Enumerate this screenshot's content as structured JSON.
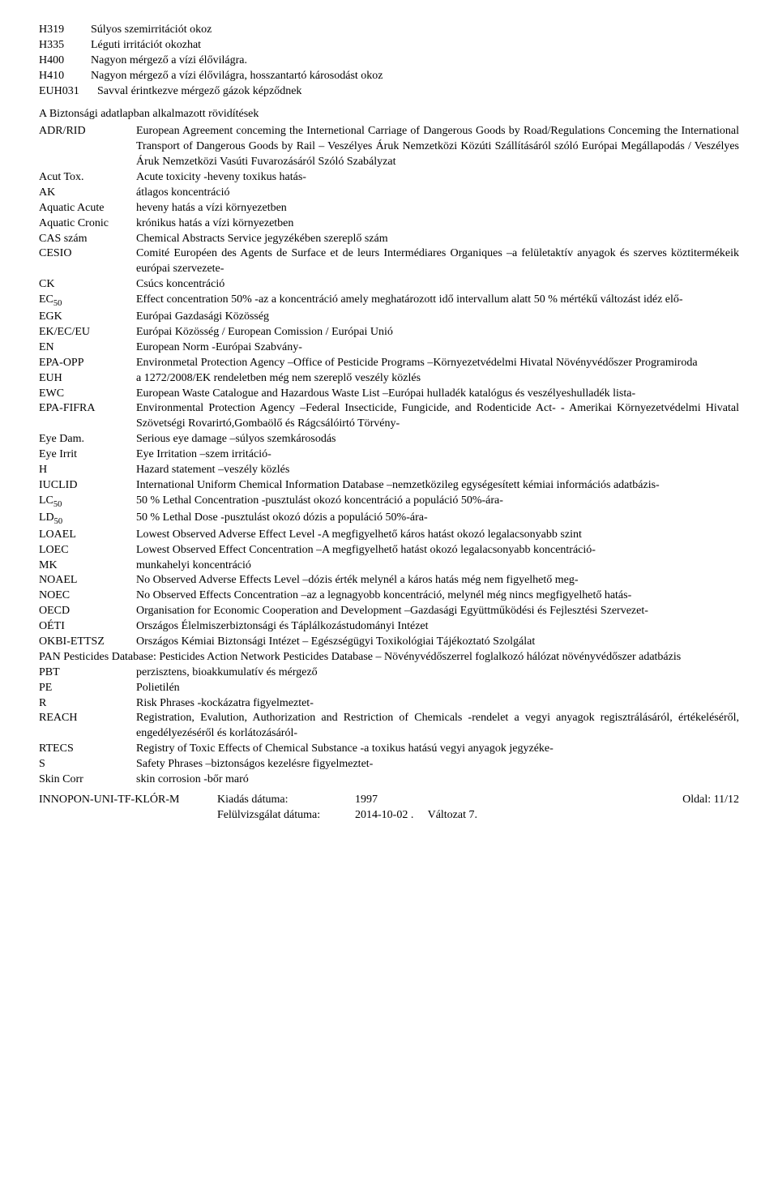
{
  "hazards": [
    {
      "code": "H319",
      "text": "Súlyos szemirritációt okoz"
    },
    {
      "code": "H335",
      "text": "Léguti irritációt okozhat"
    },
    {
      "code": "H400",
      "text": "Nagyon mérgező a vízi élővilágra."
    },
    {
      "code": "H410",
      "text": "Nagyon mérgező a vízi élővilágra, hosszantartó károsodást okoz"
    },
    {
      "code": "EUH031",
      "text": "Savval érintkezve mérgező gázok képződnek"
    }
  ],
  "section_title": "A Biztonsági adatlapban alkalmazott rövidítések",
  "abbr": [
    {
      "term": "ADR/RID",
      "def": "European Agreement conceming the Internetional Carriage of Dangerous Goods by Road/Regulations Conceming the International Transport of Dangerous Goods by Rail – Veszélyes Áruk Nemzetközi Közúti Szállításáról szóló Európai Megállapodás / Veszélyes Áruk Nemzetközi Vasúti Fuvarozásáról Szóló Szabályzat"
    },
    {
      "term": "Acut Tox.",
      "def": "Acute toxicity -heveny toxikus hatás-"
    },
    {
      "term": "AK",
      "def": "átlagos koncentráció"
    },
    {
      "term": "Aquatic Acute",
      "def": "heveny hatás a vízi környezetben"
    },
    {
      "term": "Aquatic Cronic",
      "def": "krónikus hatás a vízi környezetben"
    },
    {
      "term": "CAS szám",
      "def": "Chemical Abstracts Service jegyzékében szereplő szám"
    },
    {
      "term": "CESIO",
      "def": "Comité Européen des Agents de Surface et de leurs Intermédiares Organiques –a felületaktív anyagok és szerves köztitermékeik európai szervezete-"
    },
    {
      "term": "CK",
      "def": "Csúcs koncentráció"
    },
    {
      "term": "EC50",
      "sub": "50",
      "termBase": "EC",
      "def": "Effect concentration 50% -az a koncentráció amely meghatározott idő intervallum alatt 50 % mértékű változást idéz elő-"
    },
    {
      "term": "EGK",
      "def": "Európai Gazdasági Közösség"
    },
    {
      "term": "EK/EC/EU",
      "def": "Európai Közösség / European Comission / Európai Unió"
    },
    {
      "term": "EN",
      "def": "European Norm -Európai Szabvány-"
    },
    {
      "term": "EPA-OPP",
      "def": "Environmetal Protection Agency –Office of Pesticide Programs –Környezetvédelmi Hivatal Növényvédőszer Programiroda"
    },
    {
      "term": "EUH",
      "def": "a 1272/2008/EK rendeletben még nem szereplő veszély közlés"
    },
    {
      "term": "EWC",
      "def": "European Waste Catalogue and Hazardous Waste List –Európai hulladék katalógus és veszélyeshulladék lista-"
    },
    {
      "term": "EPA-FIFRA",
      "def": "Environmental Protection Agency –Federal Insecticide, Fungicide, and Rodenticide Act- - Amerikai Környezetvédelmi Hivatal Szövetségi Rovarirtó,Gombaölő és Rágcsálóirtó Törvény-"
    },
    {
      "term": "Eye Dam.",
      "def": "Serious eye damage –súlyos szemkárosodás"
    },
    {
      "term": "Eye Irrit",
      "def": "Eye Irritation –szem irritáció-"
    },
    {
      "term": "H",
      "def": "Hazard statement –veszély közlés"
    },
    {
      "term": "IUCLID",
      "def": "International Uniform Chemical Information Database –nemzetközileg egységesített kémiai információs adatbázis-"
    },
    {
      "term": "LC50",
      "sub": "50",
      "termBase": "LC",
      "def": "50 % Lethal Concentration -pusztulást okozó koncentráció a populáció 50%-ára-"
    },
    {
      "term": "LD50",
      "sub": "50",
      "termBase": "LD",
      "def": "50 % Lethal Dose -pusztulást okozó dózis a populáció 50%-ára-"
    },
    {
      "term": "LOAEL",
      "def": "Lowest Observed Adverse Effect Level -A megfigyelhető káros hatást okozó legalacsonyabb szint"
    },
    {
      "term": "LOEC",
      "def": "Lowest Observed Effect Concentration –A megfigyelhető hatást okozó legalacsonyabb koncentráció-"
    },
    {
      "term": "MK",
      "def": "munkahelyi koncentráció"
    },
    {
      "term": "NOAEL",
      "def": "No Observed Adverse Effects Level –dózis érték melynél a káros hatás még nem figyelhető meg-"
    },
    {
      "term": "NOEC",
      "def": "No Observed Effects Concentration –az a legnagyobb koncentráció, melynél még nincs megfigyelhető hatás-"
    },
    {
      "term": "OECD",
      "def": "Organisation for Economic Cooperation and Development –Gazdasági Együttműködési és Fejlesztési Szervezet-"
    },
    {
      "term": "OÉTI",
      "def": "Országos Élelmiszerbiztonsági és Táplálkozástudományi Intézet"
    },
    {
      "term": "OKBI-ETTSZ",
      "def": "Országos Kémiai Biztonsági Intézet – Egészségügyi Toxikológiai Tájékoztató Szolgálat"
    },
    {
      "term": "PAN Pesticides",
      "def": "Database: Pesticides Action Network Pesticides Database – Növényvédőszerrel foglalkozó hálózat növényvédőszer adatbázis",
      "inline": true
    },
    {
      "term": "PBT",
      "def": "perzisztens, bioakkumulatív és mérgező"
    },
    {
      "term": "PE",
      "def": "Polietilén"
    },
    {
      "term": "R",
      "def": "Risk Phrases -kockázatra figyelmeztet-"
    },
    {
      "term": "REACH",
      "def": "Registration, Evalution, Authorization and Restriction of Chemicals -rendelet a vegyi anyagok regisztrálásáról, értékeléséről, engedélyezéséről és korlátozásáról-"
    },
    {
      "term": "RTECS",
      "def": "Registry of Toxic Effects of Chemical Substance -a toxikus hatású vegyi anyagok jegyzéke-"
    },
    {
      "term": "S",
      "def": "Safety Phrases –biztonságos kezelésre figyelmeztet-"
    },
    {
      "term": "Skin Corr",
      "def": "skin corrosion -bőr maró"
    }
  ],
  "footer": {
    "product": "INNOPON-UNI-TF-KLÓR-M",
    "issue_label": "Kiadás dátuma:",
    "issue_value": "1997",
    "review_label": "Felülvizsgálat dátuma:",
    "review_value": "2014-10-02 .",
    "version": "Változat 7.",
    "page": "Oldal: 11/12"
  }
}
